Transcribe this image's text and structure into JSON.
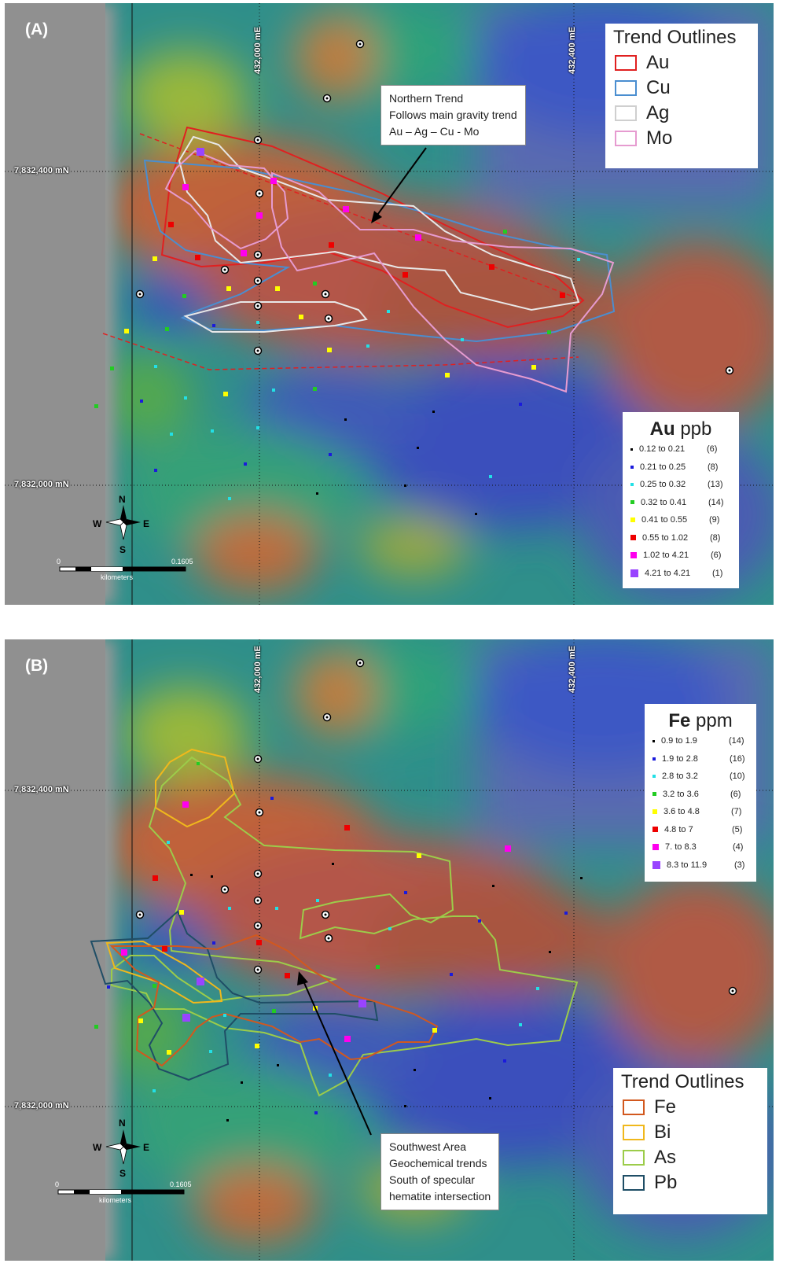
{
  "panels": [
    {
      "label": "(A)",
      "grid": {
        "easting_labels": [
          "432,000 mE",
          "432,400 mE"
        ],
        "northing_labels": [
          "7,832,400 mN",
          "7,832,000 mN"
        ]
      },
      "callout": {
        "lines": [
          "Northern Trend",
          "Follows main gravity trend",
          "Au – Ag – Cu - Mo"
        ]
      },
      "trend_legend": {
        "title": "Trend Outlines",
        "items": [
          {
            "name": "Au",
            "color": "#e02020"
          },
          {
            "name": "Cu",
            "color": "#4a8ed0"
          },
          {
            "name": "Ag",
            "color": "#e8e8e8"
          },
          {
            "name": "Mo",
            "color": "#e69bd0"
          }
        ]
      },
      "conc_legend": {
        "element": "Au",
        "unit": "ppb",
        "classes": [
          {
            "from": "0.12",
            "to": "0.21",
            "count": "(6)",
            "color": "#000000",
            "size": 3
          },
          {
            "from": "0.21",
            "to": "0.25",
            "count": "(8)",
            "color": "#1a1adc",
            "size": 4
          },
          {
            "from": "0.25",
            "to": "0.32",
            "count": "(13)",
            "color": "#22e0e6",
            "size": 4
          },
          {
            "from": "0.32",
            "to": "0.41",
            "count": "(14)",
            "color": "#22cc22",
            "size": 5
          },
          {
            "from": "0.41",
            "to": "0.55",
            "count": "(9)",
            "color": "#ffff00",
            "size": 6
          },
          {
            "from": "0.55",
            "to": "1.02",
            "count": "(8)",
            "color": "#ee0000",
            "size": 7
          },
          {
            "from": "1.02",
            "to": "4.21",
            "count": "(6)",
            "color": "#ff00ee",
            "size": 8
          },
          {
            "from": "4.21",
            "to": "4.21",
            "count": "(1)",
            "color": "#9944ff",
            "size": 10
          }
        ]
      },
      "compass": {
        "n": "N",
        "s": "S",
        "e": "E",
        "w": "W"
      },
      "scale": {
        "start": "0",
        "end": "0.1605",
        "unit": "kilometers"
      }
    },
    {
      "label": "(B)",
      "grid": {
        "easting_labels": [
          "432,000 mE",
          "432,400 mE"
        ],
        "northing_labels": [
          "7,832,400 mN",
          "7,832,000 mN"
        ]
      },
      "callout": {
        "lines": [
          "Southwest Area",
          "Geochemical trends",
          "South of specular",
          "hematite intersection"
        ]
      },
      "trend_legend": {
        "title": "Trend Outlines",
        "items": [
          {
            "name": "Fe",
            "color": "#d2581e"
          },
          {
            "name": "Bi",
            "color": "#f0b81c"
          },
          {
            "name": "As",
            "color": "#9ccc4a"
          },
          {
            "name": "Pb",
            "color": "#1f4e66"
          }
        ]
      },
      "conc_legend": {
        "element": "Fe",
        "unit": "ppm",
        "classes": [
          {
            "from": "0.9",
            "to": "1.9",
            "count": "(14)",
            "color": "#000000",
            "size": 3
          },
          {
            "from": "1.9",
            "to": "2.8",
            "count": "(16)",
            "color": "#1a1adc",
            "size": 4
          },
          {
            "from": "2.8",
            "to": "3.2",
            "count": "(10)",
            "color": "#22e0e6",
            "size": 4
          },
          {
            "from": "3.2",
            "to": "3.6",
            "count": "(6)",
            "color": "#22cc22",
            "size": 5
          },
          {
            "from": "3.6",
            "to": "4.8",
            "count": "(7)",
            "color": "#ffff00",
            "size": 6
          },
          {
            "from": "4.8",
            "to": "7",
            "count": "(5)",
            "color": "#ee0000",
            "size": 7
          },
          {
            "from": "7.",
            "to": "8.3",
            "count": "(4)",
            "color": "#ff00ee",
            "size": 8
          },
          {
            "from": "8.3",
            "to": "11.9",
            "count": "(3)",
            "color": "#9944ff",
            "size": 10
          }
        ]
      },
      "compass": {
        "n": "N",
        "s": "S",
        "e": "E",
        "w": "W"
      },
      "scale": {
        "start": "0",
        "end": "0.1605",
        "unit": "kilometers"
      }
    }
  ]
}
